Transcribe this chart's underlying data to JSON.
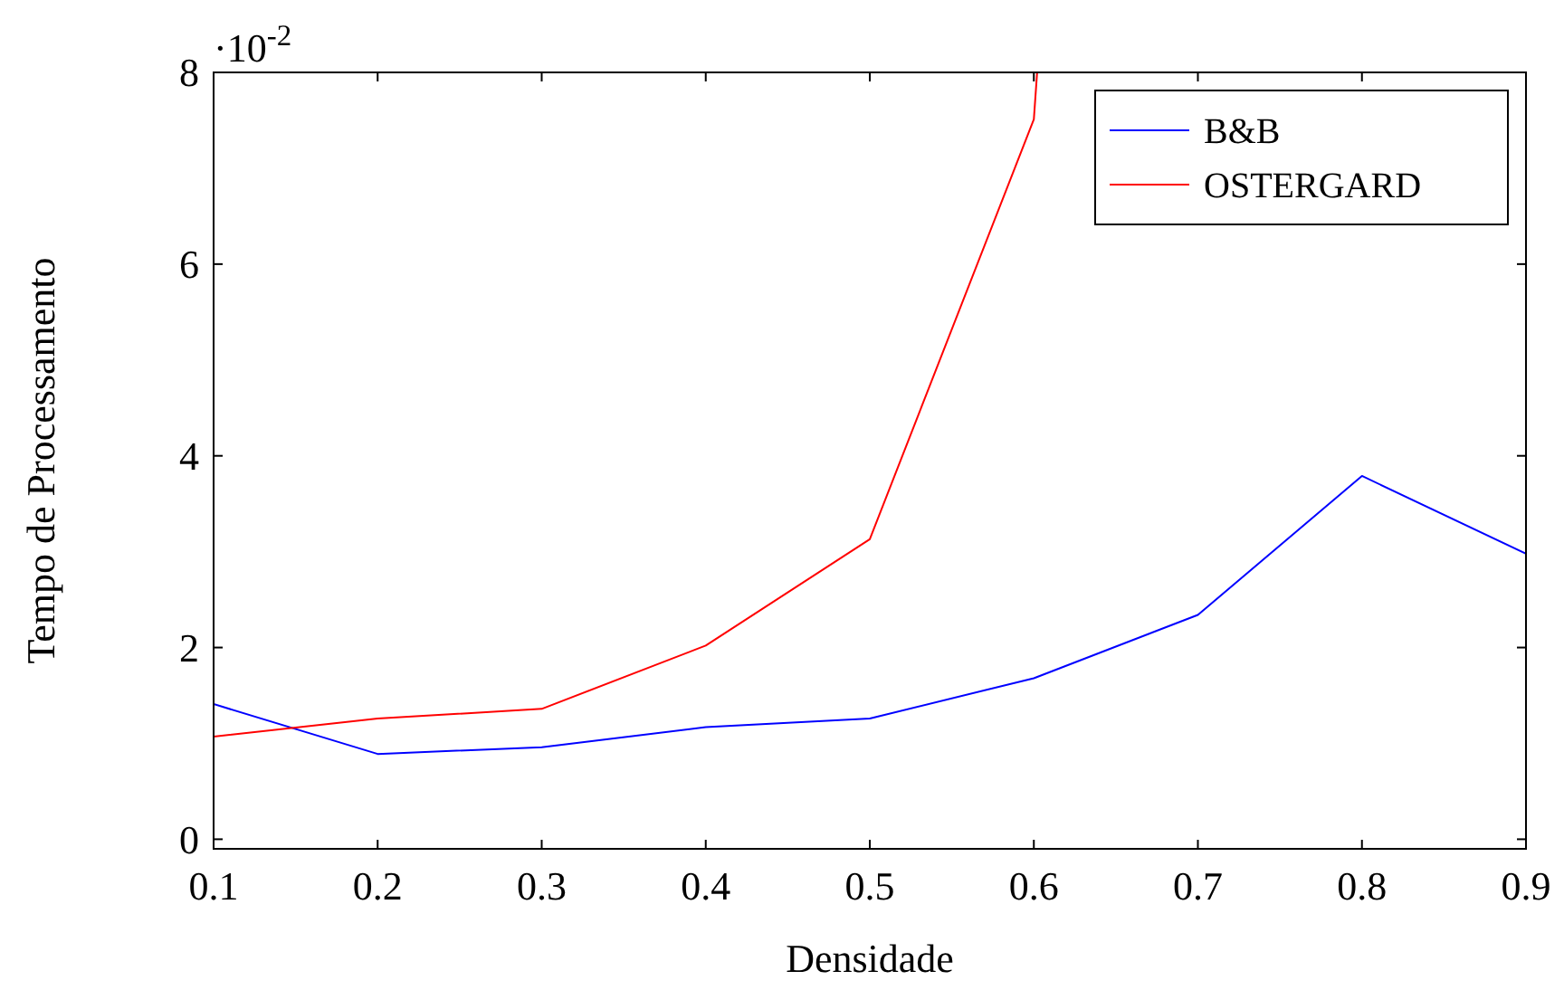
{
  "chart_data": {
    "type": "line",
    "xlabel": "Densidade",
    "ylabel": "Tempo de Processamento",
    "annotations": [
      "·10$^{-2}$"
    ],
    "xlim": [
      0.1,
      0.9
    ],
    "xticks": [
      0.1,
      0.2,
      0.3,
      0.4,
      0.5,
      0.6,
      0.7,
      0.8,
      0.9
    ],
    "ylim": [
      -0.1,
      8
    ],
    "yticks": [
      0,
      2,
      4,
      6,
      8
    ],
    "grid": false,
    "legend": "top right",
    "marker": "none",
    "line_style": "solid",
    "series": [
      {
        "name": "B&B",
        "color": "#0000ff",
        "x": [
          0.1,
          0.2,
          0.3,
          0.4,
          0.5,
          0.6,
          0.7,
          0.8,
          0.9
        ],
        "values": [
          1.41,
          0.89,
          0.96,
          1.17,
          1.26,
          1.68,
          2.34,
          3.79,
          2.98
        ]
      },
      {
        "name": "OSTERGARD",
        "color": "#ff0000",
        "x": [
          0.1,
          0.2,
          0.3,
          0.4,
          0.5,
          0.6,
          0.602
        ],
        "values": [
          1.07,
          1.26,
          1.36,
          2.02,
          3.13,
          7.51,
          8
        ]
      }
    ]
  }
}
